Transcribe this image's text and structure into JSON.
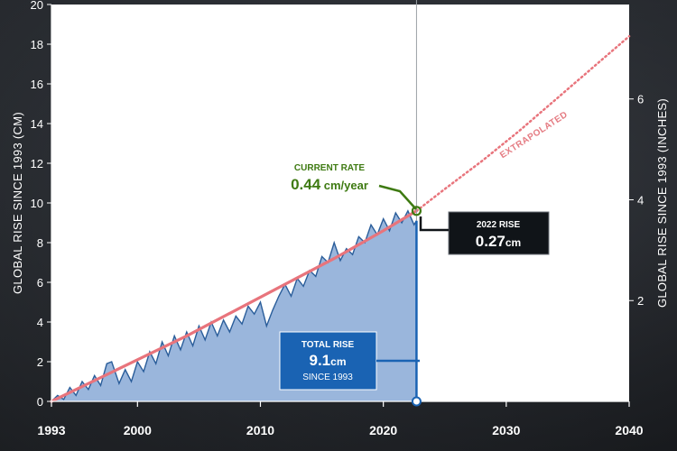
{
  "chart_data": {
    "type": "area",
    "xlim": [
      1993,
      2040
    ],
    "ylim": [
      0,
      20
    ],
    "x_ticks": [
      "1993",
      "2000",
      "2010",
      "2020",
      "2030",
      "2040"
    ],
    "y_ticks": [
      "0",
      "2",
      "4",
      "6",
      "8",
      "10",
      "12",
      "14",
      "16",
      "18",
      "20"
    ],
    "y2_ticks": [
      "2",
      "4",
      "6"
    ],
    "y2_tick_values_cm": [
      5.08,
      10.16,
      15.24
    ],
    "ylabel": "GLOBAL RISE SINCE 1993 (CM)",
    "y2label": "GLOBAL RISE SINCE 1993 (INCHES)",
    "grid": false,
    "series": [
      {
        "kind": "observed",
        "x": [
          1993.0,
          1993.5,
          1994.0,
          1994.5,
          1995.0,
          1995.5,
          1996.0,
          1996.5,
          1997.0,
          1997.5,
          1997.9,
          1998.5,
          1999.0,
          1999.5,
          2000.0,
          2000.5,
          2001.0,
          2001.5,
          2002.0,
          2002.5,
          2003.0,
          2003.5,
          2004.0,
          2004.5,
          2005.0,
          2005.5,
          2006.0,
          2006.5,
          2007.0,
          2007.5,
          2008.0,
          2008.5,
          2009.0,
          2009.5,
          2010.0,
          2010.5,
          2011.0,
          2011.5,
          2012.0,
          2012.5,
          2013.0,
          2013.5,
          2014.0,
          2014.5,
          2015.0,
          2015.5,
          2016.0,
          2016.5,
          2017.0,
          2017.5,
          2018.0,
          2018.5,
          2019.0,
          2019.5,
          2020.0,
          2020.5,
          2021.0,
          2021.5,
          2022.0,
          2022.5,
          2022.7
        ],
        "y": [
          0.0,
          0.3,
          0.1,
          0.7,
          0.3,
          1.0,
          0.6,
          1.3,
          0.8,
          1.9,
          2.0,
          0.9,
          1.6,
          1.0,
          2.0,
          1.5,
          2.5,
          1.9,
          3.0,
          2.3,
          3.3,
          2.6,
          3.5,
          2.8,
          3.8,
          3.1,
          4.0,
          3.3,
          4.1,
          3.5,
          4.3,
          3.9,
          4.8,
          4.4,
          5.0,
          3.8,
          4.6,
          5.3,
          5.9,
          5.3,
          6.2,
          5.8,
          6.6,
          6.3,
          7.3,
          7.0,
          8.0,
          7.1,
          7.7,
          7.4,
          8.3,
          8.0,
          8.9,
          8.4,
          9.2,
          8.6,
          9.5,
          9.0,
          9.6,
          8.9,
          9.1
        ]
      },
      {
        "kind": "trend",
        "x": [
          1993,
          1996,
          2000,
          2004,
          2008,
          2012,
          2016,
          2020,
          2022.7
        ],
        "y": [
          0.0,
          0.9,
          2.1,
          3.3,
          4.6,
          5.9,
          7.2,
          8.6,
          9.6
        ]
      },
      {
        "kind": "extrapolated",
        "x": [
          2022.7,
          2025,
          2028,
          2031,
          2034,
          2037,
          2040
        ],
        "y": [
          9.6,
          10.7,
          12.1,
          13.6,
          15.2,
          16.8,
          18.4
        ]
      }
    ],
    "current_year": 2022.7,
    "current_value": 9.6,
    "total_rise_value": 9.1
  },
  "annotations": {
    "extrapolated": "EXTRAPOLATED",
    "current_rate_title": "CURRENT RATE",
    "current_rate_value": "0.44",
    "current_rate_unit": " cm/year",
    "rise_2022_title": "2022 RISE",
    "rise_2022_value": "0.27",
    "rise_2022_unit": "cm",
    "total_rise_title": "TOTAL RISE",
    "total_rise_value": "9.1",
    "total_rise_unit": "cm",
    "total_rise_since": "SINCE 1993"
  },
  "colors": {
    "plot_bg": "#ffffff",
    "area_fill": "#9ab6dc",
    "area_line": "#2a5d9a",
    "trend": "#e8747c",
    "extrapolated": "#e8747c",
    "marker": "#3e7a12",
    "blue_box": "#1a63b3",
    "dark_box": "#101418",
    "cursor_line": "#9aa0a6"
  }
}
